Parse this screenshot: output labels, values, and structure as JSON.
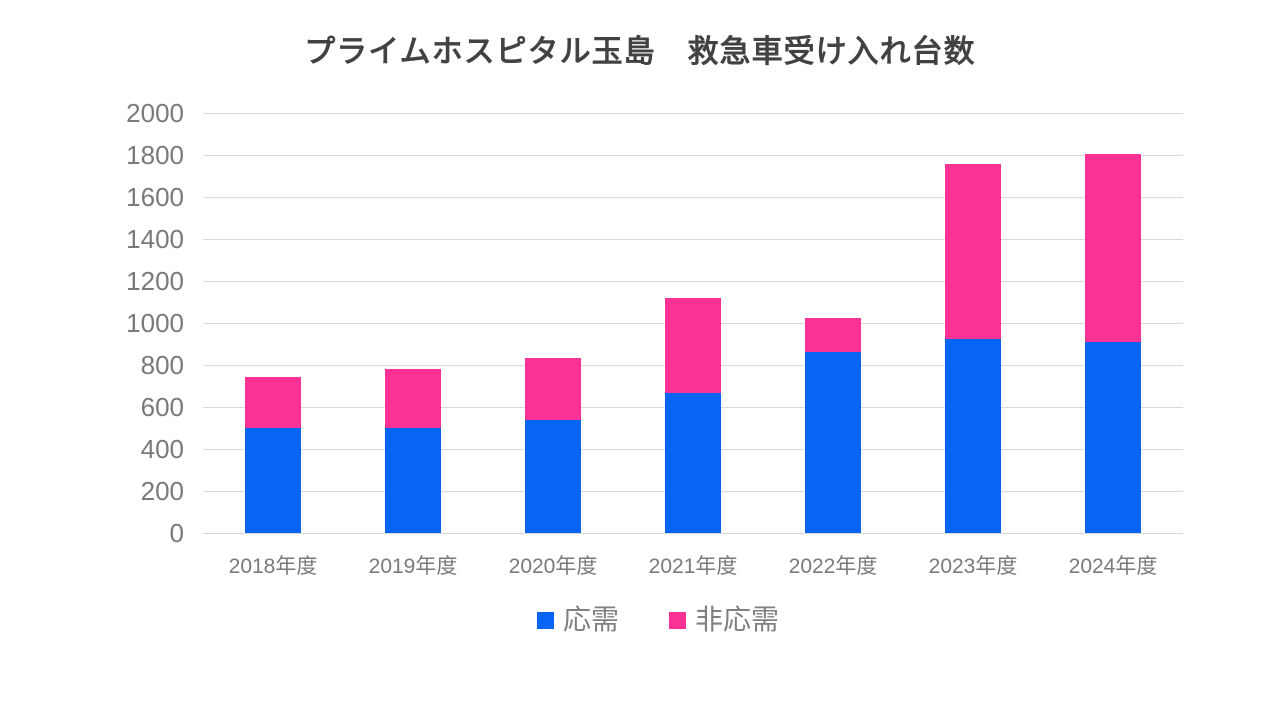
{
  "chart_data": {
    "type": "bar",
    "stacked": true,
    "title": "プライムホスピタル玉島　救急車受け入れ台数",
    "categories": [
      "2018年度",
      "2019年度",
      "2020年度",
      "2021年度",
      "2022年度",
      "2023年度",
      "2024年度"
    ],
    "series": [
      {
        "name": "応需",
        "color": "#0864f2",
        "values": [
          500,
          500,
          540,
          665,
          860,
          925,
          910
        ]
      },
      {
        "name": "非応需",
        "color": "#fa3296",
        "values": [
          245,
          280,
          295,
          455,
          165,
          830,
          895
        ]
      }
    ],
    "totals": [
      745,
      780,
      835,
      1120,
      1025,
      1755,
      1805
    ],
    "ylim": [
      0,
      2000
    ],
    "ytick_interval": 200,
    "ytick_labels": [
      "0",
      "200",
      "400",
      "600",
      "800",
      "1000",
      "1200",
      "1400",
      "1600",
      "1800",
      "2000"
    ],
    "xlabel": "",
    "ylabel": "",
    "grid": true,
    "legend_position": "bottom"
  },
  "colors": {
    "background": "#ffffff",
    "title_text": "#424242",
    "grid_line": "#d9d9d9",
    "axis_line": "#d6d6d6",
    "axis_label_text": "#7a7a7a",
    "legend_text": "#808080"
  }
}
